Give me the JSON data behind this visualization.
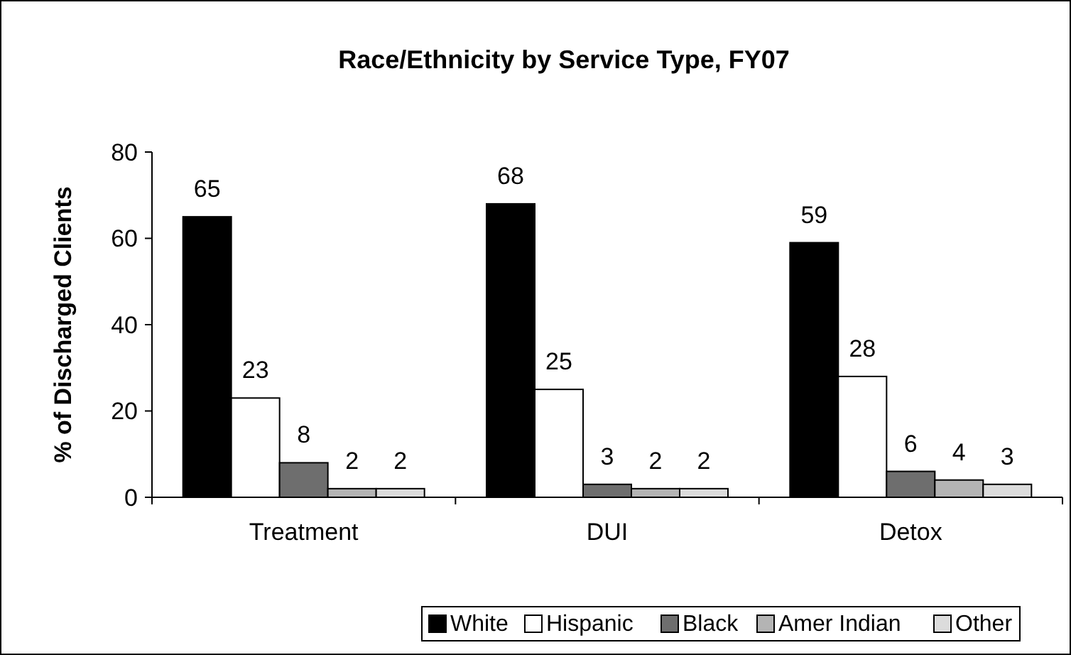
{
  "chart_data": {
    "type": "bar",
    "title": "Race/Ethnicity by Service Type, FY07",
    "ylabel": "% of Discharged Clients",
    "categories": [
      "Treatment",
      "DUI",
      "Detox"
    ],
    "series": [
      {
        "name": "White",
        "color": "#000000",
        "values": [
          65,
          68,
          59
        ]
      },
      {
        "name": "Hispanic",
        "color": "#ffffff",
        "values": [
          23,
          25,
          28
        ]
      },
      {
        "name": "Black",
        "color": "#6e6e6e",
        "values": [
          8,
          3,
          6
        ]
      },
      {
        "name": "Amer Indian",
        "color": "#b4b4b4",
        "values": [
          2,
          2,
          4
        ]
      },
      {
        "name": "Other",
        "color": "#dcdcdc",
        "values": [
          2,
          2,
          3
        ]
      }
    ],
    "ylim": [
      0,
      80
    ],
    "yticks": [
      0,
      20,
      40,
      60,
      80
    ],
    "grid": false,
    "data_labels": true,
    "legend": "bottom"
  }
}
